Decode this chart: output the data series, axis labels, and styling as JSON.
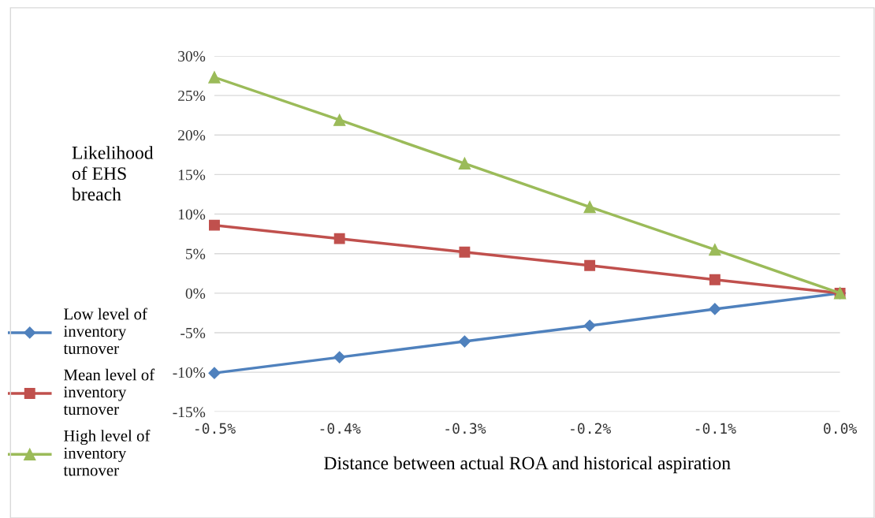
{
  "chart_data": {
    "type": "line",
    "xlabel": "Distance between actual ROA and historical aspiration",
    "ylabel": "Likelihood\nof EHS\nbreach",
    "categories": [
      "-0.5%",
      "-0.4%",
      "-0.3%",
      "-0.2%",
      "-0.1%",
      "0.0%"
    ],
    "series": [
      {
        "name": "Low level of\ninventory\nturnover",
        "color": "#4f81bd",
        "marker": "diamond",
        "values": [
          -10.1,
          -8.1,
          -6.1,
          -4.1,
          -2.0,
          0
        ]
      },
      {
        "name": "Mean level of\ninventory\nturnover",
        "color": "#c0504d",
        "marker": "square",
        "values": [
          8.6,
          6.9,
          5.2,
          3.5,
          1.7,
          0
        ]
      },
      {
        "name": "High level of\ninventory\nturnover",
        "color": "#9bbb59",
        "marker": "triangle",
        "values": [
          27.3,
          21.9,
          16.4,
          10.9,
          5.5,
          0
        ]
      }
    ],
    "ylim": [
      -15,
      30
    ],
    "yticks": [
      {
        "value": -15,
        "label": "-15%"
      },
      {
        "value": -10,
        "label": "-10%"
      },
      {
        "value": -5,
        "label": "-5%"
      },
      {
        "value": 0,
        "label": "0%"
      },
      {
        "value": 5,
        "label": "5%"
      },
      {
        "value": 10,
        "label": "10%"
      },
      {
        "value": 15,
        "label": "15%"
      },
      {
        "value": 20,
        "label": "20%"
      },
      {
        "value": 25,
        "label": "25%"
      },
      {
        "value": 30,
        "label": "30%"
      }
    ],
    "grid": "y",
    "legend": "left",
    "line_style": "solid"
  }
}
